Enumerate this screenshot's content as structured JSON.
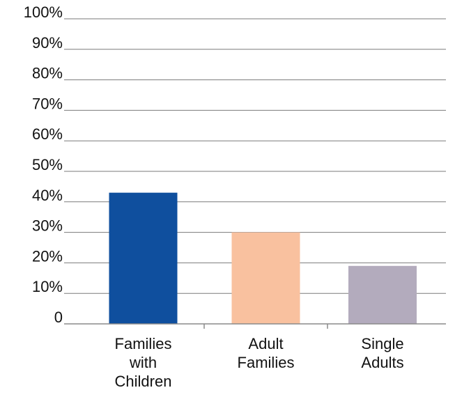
{
  "chart_data": {
    "type": "bar",
    "title": "",
    "xlabel": "",
    "ylabel": "",
    "ylim": [
      0,
      100
    ],
    "y_ticks": [
      {
        "value": 0,
        "label": "0"
      },
      {
        "value": 10,
        "label": "10%"
      },
      {
        "value": 20,
        "label": "20%"
      },
      {
        "value": 30,
        "label": "30%"
      },
      {
        "value": 40,
        "label": "40%"
      },
      {
        "value": 50,
        "label": "50%"
      },
      {
        "value": 60,
        "label": "60%"
      },
      {
        "value": 70,
        "label": "70%"
      },
      {
        "value": 80,
        "label": "80%"
      },
      {
        "value": 90,
        "label": "90%"
      },
      {
        "value": 100,
        "label": "100%"
      }
    ],
    "categories": [
      {
        "label_lines": [
          "Families",
          "with",
          "Children"
        ],
        "value": 43,
        "color": "#0f4f9e"
      },
      {
        "label_lines": [
          "Adult",
          "Families"
        ],
        "value": 30,
        "color": "#f9c19f"
      },
      {
        "label_lines": [
          "Single",
          "Adults"
        ],
        "value": 19,
        "color": "#b3abbd"
      }
    ],
    "grid": true,
    "legend": "none"
  }
}
